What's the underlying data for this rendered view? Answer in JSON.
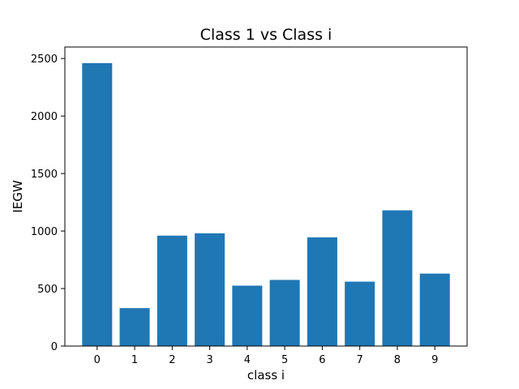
{
  "chart_data": {
    "type": "bar",
    "title": "Class 1 vs Class i",
    "xlabel": "class i",
    "ylabel": "IEGW",
    "categories": [
      "0",
      "1",
      "2",
      "3",
      "4",
      "5",
      "6",
      "7",
      "8",
      "9"
    ],
    "values": [
      2460,
      330,
      960,
      980,
      525,
      575,
      945,
      560,
      1180,
      630
    ],
    "ylim": [
      0,
      2600
    ],
    "yticks": [
      "0",
      "500",
      "1000",
      "1500",
      "2000",
      "2500"
    ],
    "bar_color": "#1f77b4",
    "grid": false,
    "legend": "none"
  }
}
